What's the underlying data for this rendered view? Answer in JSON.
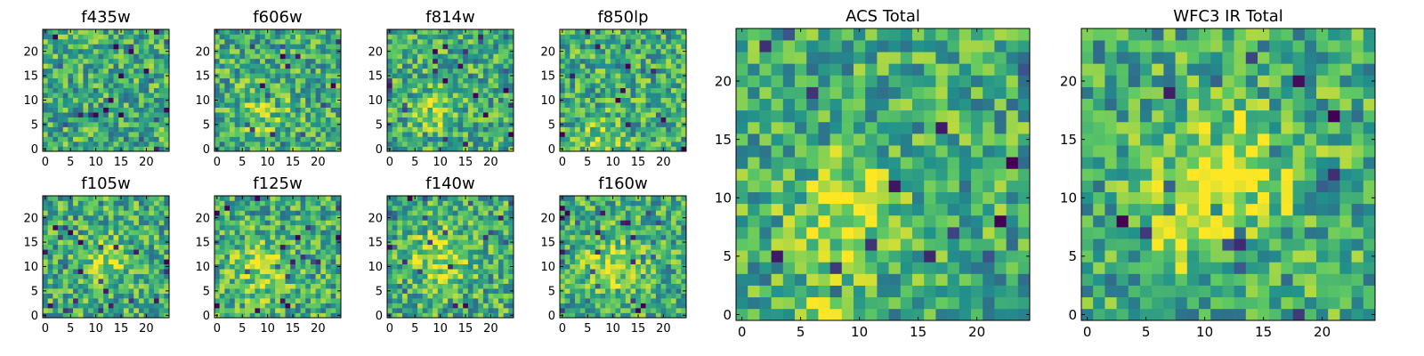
{
  "chart_data": [
    {
      "type": "heatmap",
      "title": "f435w",
      "xticks": [
        0,
        5,
        10,
        15,
        20
      ],
      "yticks": [
        0,
        5,
        10,
        15,
        20
      ],
      "xlim": [
        -0.5,
        24.5
      ],
      "ylim": [
        -0.5,
        24.5
      ],
      "grid_size": 25,
      "colormap": "viridis",
      "seed": 11,
      "blobs": []
    },
    {
      "type": "heatmap",
      "title": "f606w",
      "xticks": [
        0,
        5,
        10,
        15,
        20
      ],
      "yticks": [
        0,
        5,
        10,
        15,
        20
      ],
      "xlim": [
        -0.5,
        24.5
      ],
      "ylim": [
        -0.5,
        24.5
      ],
      "grid_size": 25,
      "colormap": "viridis",
      "seed": 23,
      "blobs": [
        {
          "cx": 9,
          "cy": 7,
          "s": 4,
          "a": 0.15
        }
      ]
    },
    {
      "type": "heatmap",
      "title": "f814w",
      "xticks": [
        0,
        5,
        10,
        15,
        20
      ],
      "yticks": [
        0,
        5,
        10,
        15,
        20
      ],
      "xlim": [
        -0.5,
        24.5
      ],
      "ylim": [
        -0.5,
        24.5
      ],
      "grid_size": 25,
      "colormap": "viridis",
      "seed": 37,
      "blobs": [
        {
          "cx": 9,
          "cy": 8,
          "s": 3,
          "a": 0.2
        }
      ]
    },
    {
      "type": "heatmap",
      "title": "f850lp",
      "xticks": [
        0,
        5,
        10,
        15,
        20
      ],
      "yticks": [
        0,
        5,
        10,
        15,
        20
      ],
      "xlim": [
        -0.5,
        24.5
      ],
      "ylim": [
        -0.5,
        24.5
      ],
      "grid_size": 25,
      "colormap": "viridis",
      "seed": 41,
      "blobs": [
        {
          "cx": 8,
          "cy": 2,
          "s": 3,
          "a": 0.2
        }
      ]
    },
    {
      "type": "heatmap",
      "title": "f105w",
      "xticks": [
        0,
        5,
        10,
        15,
        20
      ],
      "yticks": [
        0,
        5,
        10,
        15,
        20
      ],
      "xlim": [
        -0.5,
        24.5
      ],
      "ylim": [
        -0.5,
        24.5
      ],
      "grid_size": 25,
      "colormap": "viridis",
      "seed": 53,
      "blobs": [
        {
          "cx": 12,
          "cy": 12,
          "s": 3,
          "a": 0.25
        }
      ]
    },
    {
      "type": "heatmap",
      "title": "f125w",
      "xticks": [
        0,
        5,
        10,
        15,
        20
      ],
      "yticks": [
        0,
        5,
        10,
        15,
        20
      ],
      "xlim": [
        -0.5,
        24.5
      ],
      "ylim": [
        -0.5,
        24.5
      ],
      "grid_size": 25,
      "colormap": "viridis",
      "seed": 67,
      "blobs": [
        {
          "cx": 9,
          "cy": 9,
          "s": 4,
          "a": 0.25
        }
      ]
    },
    {
      "type": "heatmap",
      "title": "f140w",
      "xticks": [
        0,
        5,
        10,
        15,
        20
      ],
      "yticks": [
        0,
        5,
        10,
        15,
        20
      ],
      "xlim": [
        -0.5,
        24.5
      ],
      "ylim": [
        -0.5,
        24.5
      ],
      "grid_size": 25,
      "colormap": "viridis",
      "seed": 79,
      "blobs": [
        {
          "cx": 10,
          "cy": 12,
          "s": 4,
          "a": 0.25
        }
      ]
    },
    {
      "type": "heatmap",
      "title": "f160w",
      "xticks": [
        0,
        5,
        10,
        15,
        20
      ],
      "yticks": [
        0,
        5,
        10,
        15,
        20
      ],
      "xlim": [
        -0.5,
        24.5
      ],
      "ylim": [
        -0.5,
        24.5
      ],
      "grid_size": 25,
      "colormap": "viridis",
      "seed": 83,
      "blobs": [
        {
          "cx": 10,
          "cy": 10,
          "s": 4,
          "a": 0.25
        }
      ]
    },
    {
      "type": "heatmap",
      "title": "ACS Total",
      "xticks": [
        0,
        5,
        10,
        15,
        20
      ],
      "yticks": [
        0,
        5,
        10,
        15,
        20
      ],
      "xlim": [
        -0.5,
        24.5
      ],
      "ylim": [
        -0.5,
        24.5
      ],
      "grid_size": 25,
      "colormap": "viridis",
      "seed": 97,
      "blobs": [
        {
          "cx": 9,
          "cy": 9,
          "s": 3,
          "a": 0.35
        },
        {
          "cx": 7,
          "cy": 0,
          "s": 1.5,
          "a": 0.3
        }
      ]
    },
    {
      "type": "heatmap",
      "title": "WFC3 IR Total",
      "xticks": [
        0,
        5,
        10,
        15,
        20
      ],
      "yticks": [
        0,
        5,
        10,
        15,
        20
      ],
      "xlim": [
        -0.5,
        24.5
      ],
      "ylim": [
        -0.5,
        24.5
      ],
      "grid_size": 25,
      "colormap": "viridis",
      "seed": 101,
      "blobs": [
        {
          "cx": 12,
          "cy": 12,
          "s": 3.5,
          "a": 0.4
        },
        {
          "cx": 8,
          "cy": 8,
          "s": 2.5,
          "a": 0.3
        }
      ]
    }
  ]
}
